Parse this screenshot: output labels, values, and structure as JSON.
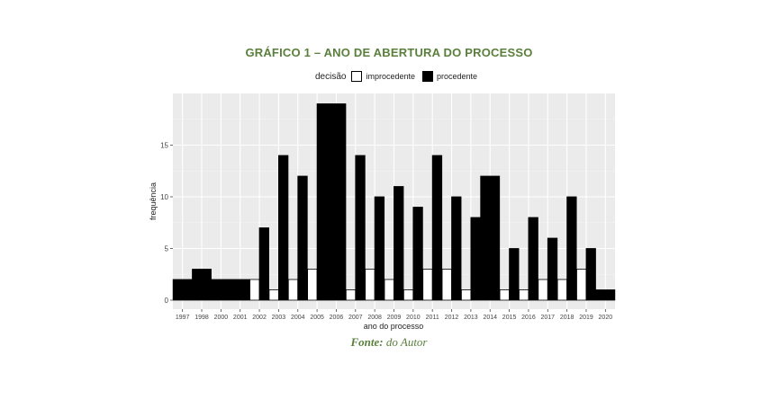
{
  "chart_data": {
    "type": "bar",
    "title": "GRÁFICO 1 – ANO DE ABERTURA DO PROCESSO",
    "xlabel": "ano do processo",
    "ylabel": "frequência",
    "ylim": [
      0,
      19.7
    ],
    "yticks": [
      0,
      5,
      10,
      15
    ],
    "legend_title": "decisão",
    "legend_position": "top",
    "grid": true,
    "categories": [
      "1997",
      "1998",
      "2000",
      "2001",
      "2002",
      "2003",
      "2004",
      "2005",
      "2006",
      "2007",
      "2008",
      "2009",
      "2010",
      "2011",
      "2012",
      "2013",
      "2014",
      "2015",
      "2016",
      "2017",
      "2018",
      "2019",
      "2020"
    ],
    "series": [
      {
        "name": "improcedente",
        "color": "#ffffff",
        "values": [
          0,
          0,
          0,
          0,
          2,
          1,
          2,
          3,
          0,
          1,
          3,
          2,
          1,
          3,
          3,
          1,
          0,
          1,
          1,
          2,
          2,
          3,
          0
        ]
      },
      {
        "name": "procedente",
        "color": "#000000",
        "values": [
          2,
          3,
          2,
          2,
          7,
          14,
          12,
          19,
          19,
          14,
          10,
          11,
          9,
          14,
          10,
          8,
          12,
          5,
          8,
          6,
          10,
          5,
          1
        ]
      }
    ]
  },
  "source": {
    "label": "Fonte:",
    "text": "do Autor"
  }
}
